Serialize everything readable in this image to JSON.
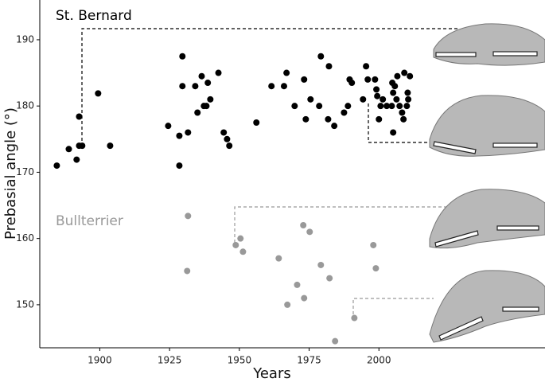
{
  "chart_data": {
    "type": "scatter",
    "xlabel": "Years",
    "ylabel": "Prebasial angle (°)",
    "xlim": [
      1878.5,
      2059.5
    ],
    "ylim": [
      143.5,
      196
    ],
    "xticks": [
      1900,
      1925,
      1950,
      1975,
      2000
    ],
    "yticks": [
      150,
      160,
      170,
      180,
      190
    ],
    "grid": false,
    "series": [
      {
        "name": "St. Bernard",
        "color": "#000000",
        "x": [
          1884.6,
          1888.9,
          1891.7,
          1892.6,
          1892.6,
          1893.7,
          1899.4,
          1903.7,
          1924.5,
          1928.5,
          1928.5,
          1929.6,
          1929.6,
          1931.6,
          1934.2,
          1936.5,
          1937.3,
          1935.0,
          1938.2,
          1938.7,
          1939.6,
          1942.5,
          1944.4,
          1945.6,
          1946.4,
          1956.1,
          1961.5,
          1966.0,
          1966.9,
          1969.8,
          1973.2,
          1973.8,
          1975.5,
          1978.6,
          1979.2,
          1981.8,
          1982.1,
          1984.0,
          1987.5,
          1988.9,
          1989.5,
          1990.3,
          1994.3,
          1995.4,
          1996.0,
          1998.6,
          1999.1,
          1999.4,
          2000.0,
          2000.6,
          2001.4,
          2002.8,
          2004.6,
          2005.1,
          2004.8,
          2005.7,
          2006.3,
          2006.6,
          2005.1,
          2007.4,
          2008.3,
          2008.8,
          2009.1,
          2010.3,
          2010.0,
          2010.5,
          2011.1
        ],
        "values": [
          171.0,
          173.5,
          171.9,
          178.4,
          174.0,
          174.0,
          181.9,
          174.0,
          177.0,
          175.5,
          171.0,
          187.5,
          183.0,
          176.0,
          183.0,
          184.5,
          180.0,
          179.0,
          180.0,
          183.5,
          181.0,
          185.0,
          176.0,
          175.0,
          174.0,
          177.5,
          183.0,
          183.0,
          185.0,
          180.0,
          184.0,
          178.0,
          181.0,
          180.0,
          187.5,
          178.0,
          186.0,
          177.0,
          179.0,
          180.0,
          184.0,
          183.5,
          181.0,
          186.0,
          184.0,
          184.0,
          182.5,
          181.5,
          178.0,
          180.0,
          181.0,
          180.0,
          180.0,
          182.0,
          183.5,
          183.0,
          181.0,
          184.5,
          176.0,
          180.0,
          179.0,
          178.0,
          185.0,
          182.0,
          180.0,
          181.0,
          184.5
        ]
      },
      {
        "name": "Bullterrier",
        "color": "#999999",
        "x": [
          1931.6,
          1931.3,
          1948.7,
          1950.4,
          1951.3,
          1964.1,
          1967.2,
          1970.7,
          1972.9,
          1973.2,
          1975.2,
          1979.2,
          1982.3,
          1984.3,
          1991.2,
          1998.0,
          1998.9
        ],
        "values": [
          163.4,
          155.1,
          159.0,
          160.0,
          158.0,
          157.0,
          150.0,
          153.0,
          162.0,
          151.0,
          161.0,
          156.0,
          154.0,
          144.5,
          148.0,
          159.0,
          155.5
        ]
      }
    ]
  }
}
